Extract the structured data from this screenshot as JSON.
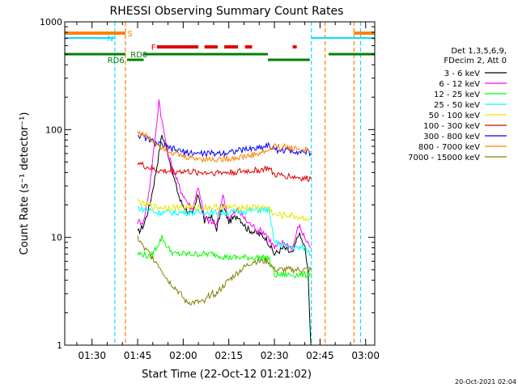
{
  "chart_data": {
    "type": "line",
    "title": "RHESSI Observing Summary Count Rates",
    "xlabel": "Start Time (22-Oct-12 01:21:02)",
    "ylabel": "Count Rate (s⁻¹ detector⁻¹)",
    "y_scale": "log",
    "ylim": [
      1,
      1000
    ],
    "y_ticks": [
      {
        "value": 1,
        "label": "1"
      },
      {
        "value": 10,
        "label": "10"
      },
      {
        "value": 100,
        "label": "100"
      },
      {
        "value": 1000,
        "label": "1000"
      }
    ],
    "xlim": [
      "01:21:02",
      "03:03:00"
    ],
    "x_ticks": [
      "01:30",
      "01:45",
      "02:00",
      "02:15",
      "02:30",
      "02:45",
      "03:00"
    ],
    "footer": "20-Oct-2021 02:04",
    "legend": {
      "placement": "right",
      "header": [
        "Det 1,3,5,6,9,",
        "FDecim 2, Att 0"
      ]
    },
    "state_bar_labels": [
      {
        "text": "S",
        "color": "#ff8000"
      },
      {
        "text": "N",
        "color": "#00e0ff"
      },
      {
        "text": "F",
        "color": "#e00000"
      },
      {
        "text": "RD0",
        "color": "#008000"
      },
      {
        "text": "RD6",
        "color": "#008000"
      }
    ],
    "vertical_markers": [
      {
        "time": "01:37:30",
        "color": "#00e0ff"
      },
      {
        "time": "01:41:00",
        "color": "#ff8000"
      },
      {
        "time": "02:42:10",
        "color": "#00e0ff"
      },
      {
        "time": "02:46:40",
        "color": "#ff8000"
      },
      {
        "time": "02:56:10",
        "color": "#ff8000"
      },
      {
        "time": "02:58:20",
        "color": "#00e0ff"
      }
    ],
    "series": [
      {
        "name": "3 - 6 keV",
        "color": "#000000",
        "points": [
          [
            "01:45:00",
            11
          ],
          [
            "01:47:00",
            13
          ],
          [
            "01:49:00",
            20
          ],
          [
            "01:51:00",
            40
          ],
          [
            "01:53:00",
            90
          ],
          [
            "01:55:00",
            60
          ],
          [
            "01:57:00",
            35
          ],
          [
            "01:59:00",
            22
          ],
          [
            "02:01:00",
            18
          ],
          [
            "02:03:00",
            16
          ],
          [
            "02:05:00",
            25
          ],
          [
            "02:07:00",
            14
          ],
          [
            "02:09:00",
            16
          ],
          [
            "02:11:00",
            12
          ],
          [
            "02:13:00",
            20
          ],
          [
            "02:15:00",
            14
          ],
          [
            "02:18:00",
            16
          ],
          [
            "02:21:00",
            12
          ],
          [
            "02:24:00",
            11
          ],
          [
            "02:27:00",
            10
          ],
          [
            "02:28:00",
            9
          ],
          [
            "02:30:00",
            7
          ],
          [
            "02:33:00",
            8
          ],
          [
            "02:36:00",
            7
          ],
          [
            "02:38:00",
            11
          ],
          [
            "02:40:00",
            8
          ],
          [
            "02:41:00",
            5
          ],
          [
            "02:42:00",
            1
          ]
        ]
      },
      {
        "name": "6 - 12 keV",
        "color": "#ff00ff",
        "points": [
          [
            "01:45:00",
            14
          ],
          [
            "01:47:00",
            14
          ],
          [
            "01:49:00",
            30
          ],
          [
            "01:51:00",
            95
          ],
          [
            "01:52:00",
            190
          ],
          [
            "01:53:00",
            120
          ],
          [
            "01:55:00",
            60
          ],
          [
            "01:57:00",
            40
          ],
          [
            "01:59:00",
            28
          ],
          [
            "02:01:00",
            22
          ],
          [
            "02:03:00",
            18
          ],
          [
            "02:05:00",
            30
          ],
          [
            "02:07:00",
            15
          ],
          [
            "02:09:00",
            14
          ],
          [
            "02:11:00",
            13
          ],
          [
            "02:13:00",
            25
          ],
          [
            "02:15:00",
            15
          ],
          [
            "02:18:00",
            18
          ],
          [
            "02:21:00",
            14
          ],
          [
            "02:24:00",
            12
          ],
          [
            "02:27:00",
            11
          ],
          [
            "02:28:00",
            10
          ],
          [
            "02:30:00",
            8
          ],
          [
            "02:33:00",
            9
          ],
          [
            "02:36:00",
            8
          ],
          [
            "02:38:00",
            13
          ],
          [
            "02:40:00",
            10
          ],
          [
            "02:42:00",
            8
          ]
        ]
      },
      {
        "name": "12 - 25 keV",
        "color": "#00ff00",
        "points": [
          [
            "01:45:00",
            7
          ],
          [
            "01:47:00",
            7
          ],
          [
            "01:49:00",
            6.5
          ],
          [
            "01:51:00",
            8
          ],
          [
            "01:53:00",
            10
          ],
          [
            "01:55:00",
            8
          ],
          [
            "01:57:00",
            7
          ],
          [
            "02:00:00",
            7
          ],
          [
            "02:05:00",
            7
          ],
          [
            "02:10:00",
            7
          ],
          [
            "02:15:00",
            6.5
          ],
          [
            "02:20:00",
            6.5
          ],
          [
            "02:25:00",
            6.5
          ],
          [
            "02:28:00",
            6.5
          ],
          [
            "02:30:00",
            4.5
          ],
          [
            "02:35:00",
            4.5
          ],
          [
            "02:40:00",
            4.5
          ],
          [
            "02:42:00",
            4.5
          ]
        ]
      },
      {
        "name": "25 - 50 keV",
        "color": "#00ffff",
        "points": [
          [
            "01:45:00",
            19
          ],
          [
            "01:47:00",
            18
          ],
          [
            "01:49:00",
            18
          ],
          [
            "01:51:00",
            17
          ],
          [
            "01:53:00",
            17
          ],
          [
            "01:57:00",
            17
          ],
          [
            "02:00:00",
            17
          ],
          [
            "02:05:00",
            17
          ],
          [
            "02:10:00",
            17
          ],
          [
            "02:15:00",
            17
          ],
          [
            "02:20:00",
            17.5
          ],
          [
            "02:25:00",
            18
          ],
          [
            "02:28:00",
            18
          ],
          [
            "02:30:00",
            9
          ],
          [
            "02:33:00",
            8.5
          ],
          [
            "02:36:00",
            8
          ],
          [
            "02:40:00",
            8
          ],
          [
            "02:42:00",
            7
          ]
        ]
      },
      {
        "name": "50 - 100 keV",
        "color": "#e6e600",
        "points": [
          [
            "01:45:00",
            22
          ],
          [
            "01:47:00",
            20
          ],
          [
            "01:49:00",
            20
          ],
          [
            "01:51:00",
            19
          ],
          [
            "01:53:00",
            19
          ],
          [
            "02:00:00",
            19
          ],
          [
            "02:05:00",
            19
          ],
          [
            "02:10:00",
            19
          ],
          [
            "02:15:00",
            19
          ],
          [
            "02:20:00",
            19
          ],
          [
            "02:25:00",
            19
          ],
          [
            "02:28:00",
            19
          ],
          [
            "02:30:00",
            16
          ],
          [
            "02:35:00",
            16
          ],
          [
            "02:40:00",
            15
          ],
          [
            "02:42:00",
            15
          ]
        ]
      },
      {
        "name": "100 - 300 keV",
        "color": "#e00000",
        "points": [
          [
            "01:45:00",
            50
          ],
          [
            "01:47:00",
            46
          ],
          [
            "01:49:00",
            44
          ],
          [
            "01:51:00",
            42
          ],
          [
            "01:53:00",
            41
          ],
          [
            "02:00:00",
            41
          ],
          [
            "02:05:00",
            40
          ],
          [
            "02:10:00",
            40
          ],
          [
            "02:15:00",
            40
          ],
          [
            "02:20:00",
            41
          ],
          [
            "02:25:00",
            42
          ],
          [
            "02:28:00",
            44
          ],
          [
            "02:30:00",
            38
          ],
          [
            "02:35:00",
            37
          ],
          [
            "02:40:00",
            35
          ],
          [
            "02:42:00",
            35
          ]
        ]
      },
      {
        "name": "300 - 800 keV",
        "color": "#0000ff",
        "points": [
          [
            "01:45:00",
            90
          ],
          [
            "01:47:00",
            85
          ],
          [
            "01:49:00",
            80
          ],
          [
            "01:51:00",
            75
          ],
          [
            "01:53:00",
            72
          ],
          [
            "01:55:00",
            68
          ],
          [
            "02:00:00",
            62
          ],
          [
            "02:05:00",
            60
          ],
          [
            "02:10:00",
            60
          ],
          [
            "02:15:00",
            62
          ],
          [
            "02:20:00",
            65
          ],
          [
            "02:25:00",
            68
          ],
          [
            "02:28:00",
            72
          ],
          [
            "02:30:00",
            65
          ],
          [
            "02:35:00",
            64
          ],
          [
            "02:40:00",
            62
          ],
          [
            "02:42:00",
            60
          ]
        ]
      },
      {
        "name": "800 - 7000 keV",
        "color": "#ff8000",
        "points": [
          [
            "01:45:00",
            95
          ],
          [
            "01:47:00",
            90
          ],
          [
            "01:49:00",
            82
          ],
          [
            "01:51:00",
            75
          ],
          [
            "01:53:00",
            70
          ],
          [
            "01:55:00",
            64
          ],
          [
            "02:00:00",
            56
          ],
          [
            "02:05:00",
            54
          ],
          [
            "02:10:00",
            53
          ],
          [
            "02:15:00",
            54
          ],
          [
            "02:20:00",
            56
          ],
          [
            "02:25:00",
            60
          ],
          [
            "02:28:00",
            64
          ],
          [
            "02:30:00",
            70
          ],
          [
            "02:35:00",
            68
          ],
          [
            "02:40:00",
            65
          ],
          [
            "02:42:00",
            62
          ]
        ]
      },
      {
        "name": "7000 - 15000 keV",
        "color": "#808000",
        "points": [
          [
            "01:45:00",
            10
          ],
          [
            "01:47:00",
            8
          ],
          [
            "01:49:00",
            7
          ],
          [
            "01:51:00",
            6
          ],
          [
            "01:53:00",
            5
          ],
          [
            "01:55:00",
            4
          ],
          [
            "01:57:00",
            3.5
          ],
          [
            "01:59:00",
            3
          ],
          [
            "02:01:00",
            2.5
          ],
          [
            "02:03:00",
            2.5
          ],
          [
            "02:05:00",
            2.5
          ],
          [
            "02:07:00",
            2.5
          ],
          [
            "02:09:00",
            3
          ],
          [
            "02:11:00",
            3
          ],
          [
            "02:13:00",
            3.5
          ],
          [
            "02:15:00",
            4
          ],
          [
            "02:17:00",
            4.5
          ],
          [
            "02:19:00",
            5
          ],
          [
            "02:21:00",
            5.5
          ],
          [
            "02:23:00",
            6
          ],
          [
            "02:25:00",
            6
          ],
          [
            "02:28:00",
            6
          ],
          [
            "02:30:00",
            5
          ],
          [
            "02:33:00",
            5
          ],
          [
            "02:36:00",
            5
          ],
          [
            "02:40:00",
            5
          ],
          [
            "02:42:00",
            5
          ]
        ]
      }
    ]
  }
}
